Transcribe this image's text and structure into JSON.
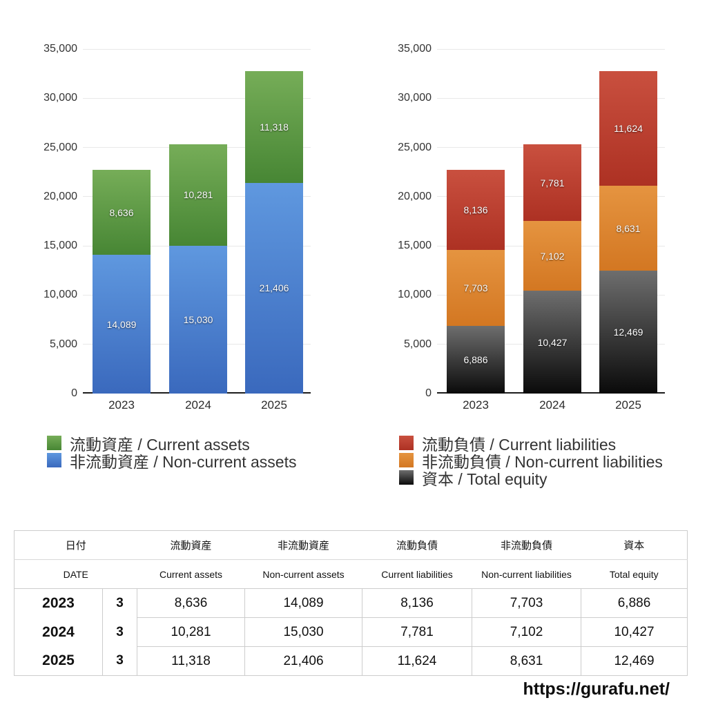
{
  "page": {
    "background": "#ffffff",
    "footer_url": "https://gurafu.net/"
  },
  "chart_data": [
    {
      "type": "bar",
      "stacked": true,
      "title": "",
      "xlabel": "",
      "ylabel": "",
      "ylim": [
        0,
        35000
      ],
      "grid": true,
      "legend_position": "bottom-left",
      "y_ticks": [
        "35,000",
        "30,000",
        "25,000",
        "20,000",
        "15,000",
        "10,000",
        "5,000",
        "0"
      ],
      "categories": [
        "2023",
        "2024",
        "2025"
      ],
      "series": [
        {
          "name": "非流動資産 / Non-current assets",
          "color": "#4a7fd0",
          "gradient": [
            "#5f98df",
            "#3a69bd"
          ],
          "values": [
            14089,
            15030,
            21406
          ],
          "labels": [
            "14,089",
            "15,030",
            "21,406"
          ]
        },
        {
          "name": "流動資産 / Current assets",
          "color": "#5d9a44",
          "gradient": [
            "#76ad58",
            "#478634"
          ],
          "values": [
            8636,
            10281,
            11318
          ],
          "labels": [
            "8,636",
            "10,281",
            "11,318"
          ]
        }
      ]
    },
    {
      "type": "bar",
      "stacked": true,
      "title": "",
      "xlabel": "",
      "ylabel": "",
      "ylim": [
        0,
        35000
      ],
      "grid": true,
      "legend_position": "bottom-left",
      "y_ticks": [
        "35,000",
        "30,000",
        "25,000",
        "20,000",
        "15,000",
        "10,000",
        "5,000",
        "0"
      ],
      "categories": [
        "2023",
        "2024",
        "2025"
      ],
      "series": [
        {
          "name": "資本 / Total equity",
          "color": "#333333",
          "gradient": [
            "#6e6e6e",
            "#0a0a0a"
          ],
          "values": [
            6886,
            10427,
            12469
          ],
          "labels": [
            "6,886",
            "10,427",
            "12,469"
          ]
        },
        {
          "name": "非流動負債 / Non-current liabilities",
          "color": "#dd8630",
          "gradient": [
            "#e59440",
            "#d37722"
          ],
          "values": [
            7703,
            7102,
            8631
          ],
          "labels": [
            "7,703",
            "7,102",
            "8,631"
          ]
        },
        {
          "name": "流動負債 / Current liabilities",
          "color": "#bf4232",
          "gradient": [
            "#c9503f",
            "#ad3123"
          ],
          "values": [
            8136,
            7781,
            11624
          ],
          "labels": [
            "8,136",
            "7,781",
            "11,624"
          ]
        }
      ]
    }
  ],
  "table": {
    "header_jp": [
      "日付",
      "流動資産",
      "非流動資産",
      "流動負債",
      "非流動負債",
      "資本"
    ],
    "header_en": [
      "DATE",
      "Current assets",
      "Non-current assets",
      "Current liabilities",
      "Non-current liabilities",
      "Total equity"
    ],
    "rows": [
      {
        "year": "2023",
        "month": "3",
        "values": [
          "8,636",
          "14,089",
          "8,136",
          "7,703",
          "6,886"
        ]
      },
      {
        "year": "2024",
        "month": "3",
        "values": [
          "10,281",
          "15,030",
          "7,781",
          "7,102",
          "10,427"
        ]
      },
      {
        "year": "2025",
        "month": "3",
        "values": [
          "11,318",
          "21,406",
          "11,624",
          "8,631",
          "12,469"
        ]
      }
    ]
  }
}
